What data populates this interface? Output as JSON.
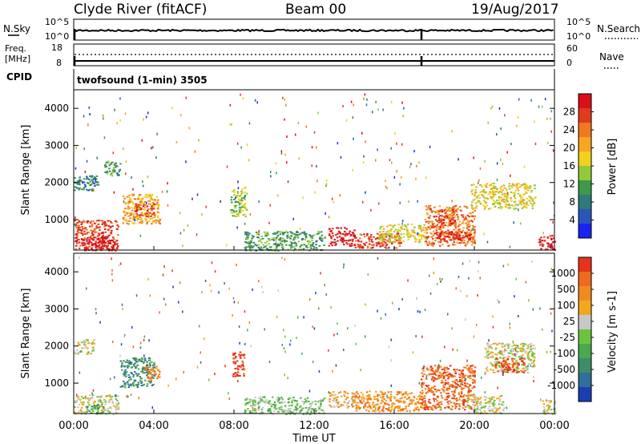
{
  "header": {
    "station": "Clyde River (fitACF)",
    "beam": "Beam 00",
    "date": "19/Aug/2017"
  },
  "strips": {
    "nsky": {
      "left_label": "N.Sky",
      "left_ticks": [
        "10^5",
        "10^0"
      ],
      "right_label": "N.Search",
      "right_ticks": [
        "10^5",
        "10^0"
      ]
    },
    "freq": {
      "left_label_1": "Freq.",
      "left_label_2": "[MHz]",
      "left_ticks": [
        "18",
        "8"
      ],
      "right_label": "Nave",
      "right_ticks": [
        "60",
        "0"
      ]
    },
    "cpid": {
      "left_label": "CPID",
      "program": "twofsound (1-min) 3505"
    }
  },
  "chart_data": [
    {
      "type": "heatmap",
      "name": "power",
      "ylabel": "Slant Range [km]",
      "yticks": [
        "1000",
        "2000",
        "3000",
        "4000"
      ],
      "ylim": [
        180,
        4500
      ],
      "xlim_hours": [
        0,
        24
      ],
      "colorbar": {
        "label": "Power [dB]",
        "ticks": [
          "4",
          "8",
          "12",
          "16",
          "20",
          "24",
          "28"
        ],
        "colors": [
          "#1a24f0",
          "#2a56b8",
          "#2f7a7a",
          "#3c9a4a",
          "#93c83b",
          "#f0d21a",
          "#f7a623",
          "#f0781e",
          "#e03a1f",
          "#d9111a"
        ]
      },
      "echo_bands": [
        {
          "t0": 0.0,
          "t1": 2.2,
          "r0": 180,
          "r1": 1000,
          "level": 8
        },
        {
          "t0": 0.3,
          "t1": 1.8,
          "r0": 180,
          "r1": 550,
          "level": 9
        },
        {
          "t0": 0.0,
          "t1": 1.2,
          "r0": 1800,
          "r1": 2200,
          "level": 2
        },
        {
          "t0": 2.4,
          "t1": 4.3,
          "r0": 900,
          "r1": 1700,
          "level": 6
        },
        {
          "t0": 3.0,
          "t1": 4.0,
          "r0": 1100,
          "r1": 1450,
          "level": 8
        },
        {
          "t0": 1.5,
          "t1": 2.3,
          "r0": 2200,
          "r1": 2600,
          "level": 3
        },
        {
          "t0": 7.8,
          "t1": 8.6,
          "r0": 1100,
          "r1": 1900,
          "level": 4
        },
        {
          "t0": 8.5,
          "t1": 12.5,
          "r0": 180,
          "r1": 700,
          "level": 3
        },
        {
          "t0": 12.7,
          "t1": 14.0,
          "r0": 300,
          "r1": 800,
          "level": 9
        },
        {
          "t0": 14.0,
          "t1": 16.3,
          "r0": 250,
          "r1": 650,
          "level": 8
        },
        {
          "t0": 15.2,
          "t1": 17.5,
          "r0": 400,
          "r1": 900,
          "level": 5
        },
        {
          "t0": 17.5,
          "t1": 20.0,
          "r0": 300,
          "r1": 1400,
          "level": 7
        },
        {
          "t0": 18.0,
          "t1": 19.8,
          "r0": 450,
          "r1": 700,
          "level": 9
        },
        {
          "t0": 18.2,
          "t1": 19.0,
          "r0": 900,
          "r1": 1300,
          "level": 8
        },
        {
          "t0": 19.8,
          "t1": 23.0,
          "r0": 1300,
          "r1": 2000,
          "level": 5
        },
        {
          "t0": 23.2,
          "t1": 24.0,
          "r0": 180,
          "r1": 600,
          "level": 9
        }
      ]
    },
    {
      "type": "heatmap",
      "name": "velocity",
      "ylabel": "Slant Range [km]",
      "yticks": [
        "1000",
        "2000",
        "3000",
        "4000"
      ],
      "ylim": [
        180,
        4500
      ],
      "xlim_hours": [
        0,
        24
      ],
      "colorbar": {
        "label": "Velocity [m s-1]",
        "ticks": [
          "1000",
          "500",
          "100",
          "25",
          "-25",
          "-100",
          "-500",
          "-1000"
        ],
        "colors": [
          "#1a3fb5",
          "#2f6f9a",
          "#3e8c6a",
          "#4aa84e",
          "#6cc43e",
          "#c8c8c8",
          "#f2a81c",
          "#f08a1f",
          "#ee6a1e",
          "#e6331a"
        ]
      },
      "echo_bands": [
        {
          "t0": 0.0,
          "t1": 2.2,
          "r0": 180,
          "r1": 700,
          "level": 5
        },
        {
          "t0": 0.5,
          "t1": 1.5,
          "r0": 200,
          "r1": 450,
          "level": 3
        },
        {
          "t0": 2.3,
          "t1": 4.0,
          "r0": 900,
          "r1": 1700,
          "level": 2
        },
        {
          "t0": 3.5,
          "t1": 4.3,
          "r0": 1100,
          "r1": 1500,
          "level": 7
        },
        {
          "t0": 0.0,
          "t1": 1.0,
          "r0": 1800,
          "r1": 2200,
          "level": 5
        },
        {
          "t0": 7.9,
          "t1": 8.5,
          "r0": 1200,
          "r1": 1900,
          "level": 9
        },
        {
          "t0": 8.5,
          "t1": 12.5,
          "r0": 180,
          "r1": 650,
          "level": 4
        },
        {
          "t0": 12.7,
          "t1": 14.0,
          "r0": 350,
          "r1": 800,
          "level": 6
        },
        {
          "t0": 14.0,
          "t1": 17.5,
          "r0": 250,
          "r1": 800,
          "level": 7
        },
        {
          "t0": 17.3,
          "t1": 20.0,
          "r0": 300,
          "r1": 1500,
          "level": 8
        },
        {
          "t0": 19.6,
          "t1": 21.5,
          "r0": 200,
          "r1": 700,
          "level": 5
        },
        {
          "t0": 20.5,
          "t1": 23.0,
          "r0": 1300,
          "r1": 2100,
          "level": 5
        },
        {
          "t0": 21.0,
          "t1": 22.5,
          "r0": 1300,
          "r1": 1700,
          "level": 9
        },
        {
          "t0": 23.3,
          "t1": 24.0,
          "r0": 180,
          "r1": 550,
          "level": 5
        }
      ]
    }
  ],
  "xaxis": {
    "label": "Time UT",
    "ticks": [
      "00:00",
      "04:00",
      "08:00",
      "12:00",
      "16:00",
      "20:00",
      "00:00"
    ]
  }
}
